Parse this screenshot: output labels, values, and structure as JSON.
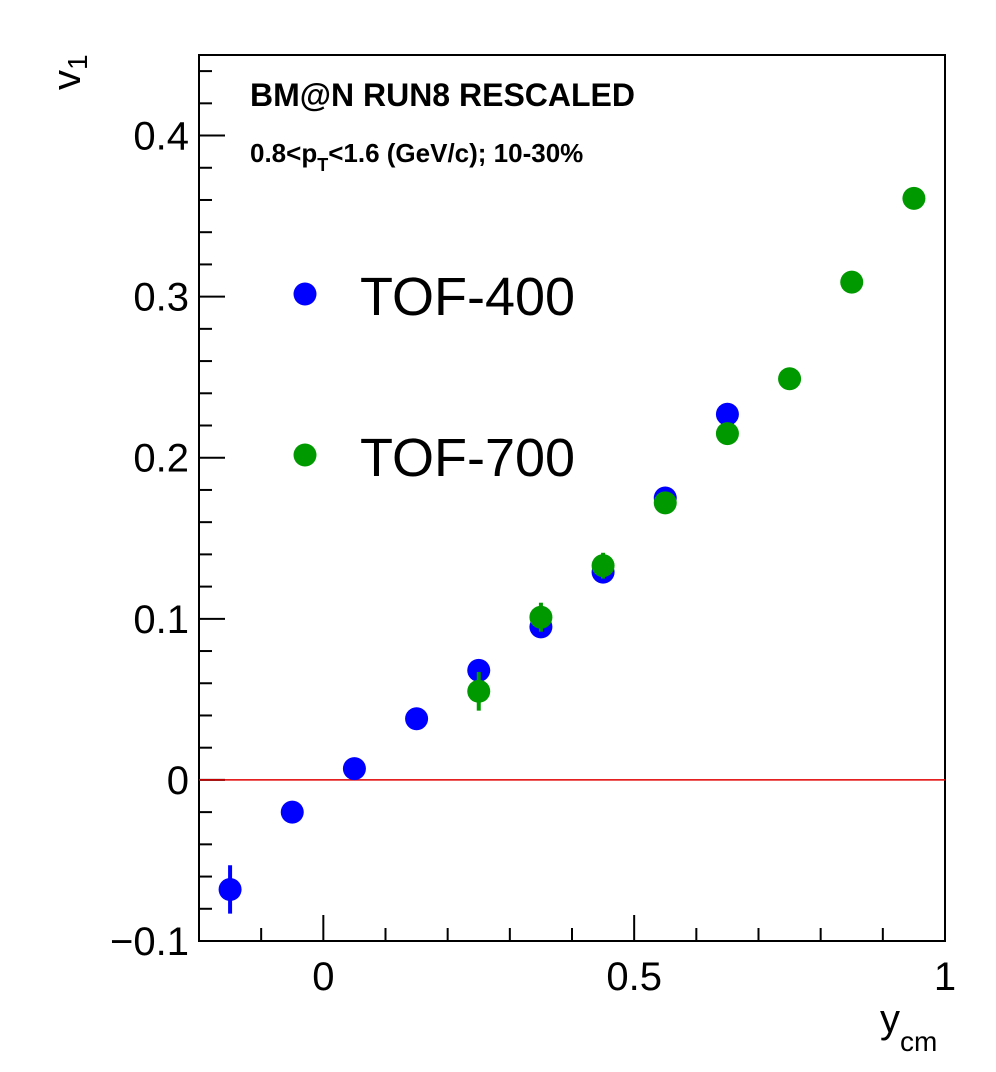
{
  "chart_data": {
    "type": "scatter",
    "annotations": {
      "line1": "BM@N RUN8 RESCALED",
      "line2_pre": "0.8<p",
      "line2_sub": "T",
      "line2_post": "<1.6 (GeV/c); 10-30%"
    },
    "xlabel": "y",
    "xlabel_sub": "cm",
    "ylabel": "v",
    "ylabel_sub": "1",
    "xlim": [
      -0.2,
      1.0
    ],
    "ylim": [
      -0.1,
      0.45
    ],
    "x_ticks": [
      {
        "value": 0,
        "label": "0"
      },
      {
        "value": 0.5,
        "label": "0.5"
      },
      {
        "value": 1,
        "label": "1"
      }
    ],
    "y_ticks": [
      {
        "value": -0.1,
        "label": "−0.1"
      },
      {
        "value": 0,
        "label": "0"
      },
      {
        "value": 0.1,
        "label": "0.1"
      },
      {
        "value": 0.2,
        "label": "0.2"
      },
      {
        "value": 0.3,
        "label": "0.3"
      },
      {
        "value": 0.4,
        "label": "0.4"
      }
    ],
    "reference_line": {
      "y": 0,
      "color": "#e00000"
    },
    "legend_position": "upper-left",
    "series": [
      {
        "name": "TOF-400",
        "color": "#0000ff",
        "points": [
          {
            "x": -0.15,
            "y": -0.068,
            "err": 0.015
          },
          {
            "x": -0.05,
            "y": -0.02,
            "err": 0.004
          },
          {
            "x": 0.05,
            "y": 0.007,
            "err": 0.003
          },
          {
            "x": 0.15,
            "y": 0.038,
            "err": 0.003
          },
          {
            "x": 0.25,
            "y": 0.068,
            "err": 0.003
          },
          {
            "x": 0.35,
            "y": 0.095,
            "err": 0.003
          },
          {
            "x": 0.45,
            "y": 0.129,
            "err": 0.003
          },
          {
            "x": 0.55,
            "y": 0.175,
            "err": 0.003
          },
          {
            "x": 0.65,
            "y": 0.227,
            "err": 0.004
          }
        ]
      },
      {
        "name": "TOF-700",
        "color": "#009900",
        "points": [
          {
            "x": 0.25,
            "y": 0.055,
            "err": 0.012
          },
          {
            "x": 0.35,
            "y": 0.101,
            "err": 0.009
          },
          {
            "x": 0.45,
            "y": 0.133,
            "err": 0.008
          },
          {
            "x": 0.55,
            "y": 0.172,
            "err": 0.004
          },
          {
            "x": 0.65,
            "y": 0.215,
            "err": 0.003
          },
          {
            "x": 0.75,
            "y": 0.249,
            "err": 0.003
          },
          {
            "x": 0.85,
            "y": 0.309,
            "err": 0.003
          },
          {
            "x": 0.95,
            "y": 0.361,
            "err": 0.003
          }
        ]
      }
    ]
  }
}
